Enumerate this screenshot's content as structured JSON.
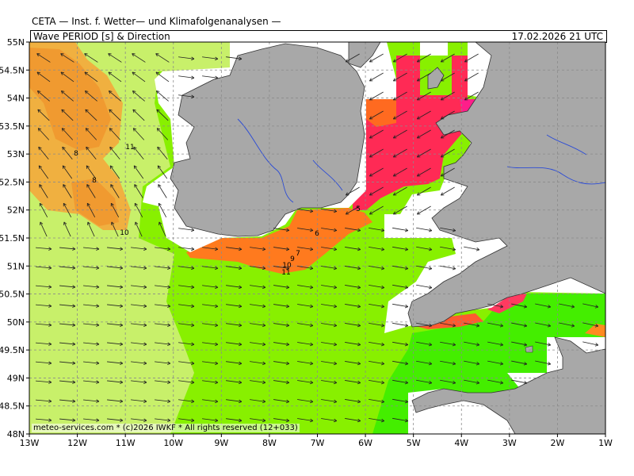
{
  "header": {
    "agency": "CETA — Inst. f. Wetter— und Klimafolgenanalysen —",
    "product": "Wave PERIOD [s] & Direction",
    "valid_time": "17.02.2026 21 UTC"
  },
  "footer": {
    "credit": "meteo-services.com * (c)2026 IWKF * All rights reserved (12+033)"
  },
  "map": {
    "lat_labels": [
      "55N",
      "54.5N",
      "54N",
      "53.5N",
      "53N",
      "52.5N",
      "52N",
      "51.5N",
      "51N",
      "50.5N",
      "50N",
      "49.5N",
      "49N",
      "48.5N",
      "48N"
    ],
    "lon_labels": [
      "13W",
      "12W",
      "11W",
      "10W",
      "9W",
      "8W",
      "7W",
      "6W",
      "5W",
      "4W",
      "3W",
      "2W",
      "1W"
    ],
    "contour_labels": [
      "8",
      "8",
      "11",
      "10",
      "6",
      "5",
      "7",
      "9",
      "10",
      "11"
    ],
    "colors": {
      "land": "#a8a8a8",
      "sea_light": "#c8f06a",
      "sea_green": "#88f000",
      "sea_bright": "#44ee00",
      "long_period": "#f0a030",
      "longer_period": "#ff7a1e",
      "short_period": "#ff2a55",
      "shortest_period": "#ff1e8a"
    }
  }
}
